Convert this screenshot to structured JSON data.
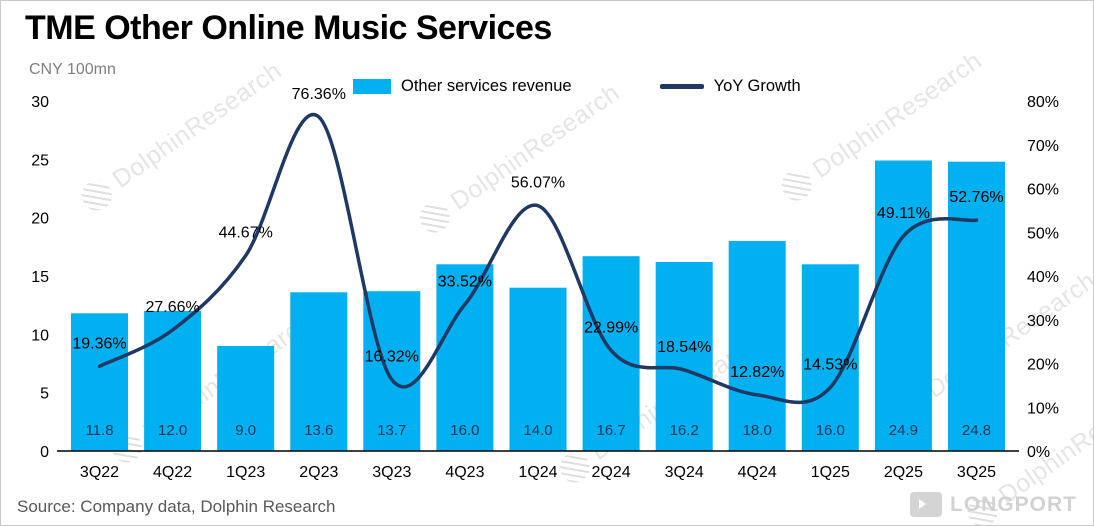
{
  "title": "TME Other Online Music Services",
  "unit_label": "CNY 100mn",
  "source": "Source: Company data, Dolphin Research",
  "watermark": {
    "text": "DolphinResearch"
  },
  "brand": {
    "text": "LONGPORT"
  },
  "legend": {
    "bar_label": "Other services revenue",
    "line_label": "YoY Growth"
  },
  "colors": {
    "bar": "#00B0F0",
    "line": "#1F3864",
    "bar_value_label": "#17375E",
    "axis_text": "#000000"
  },
  "chart_data": {
    "type": "bar+line",
    "title": "TME Other Online Music Services",
    "unit": "CNY 100mn",
    "categories": [
      "3Q22",
      "4Q22",
      "1Q23",
      "2Q23",
      "3Q23",
      "4Q23",
      "1Q24",
      "2Q24",
      "3Q24",
      "4Q24",
      "1Q25",
      "2Q25",
      "3Q25"
    ],
    "series": [
      {
        "name": "Other services revenue",
        "type": "bar",
        "axis": "left",
        "values": [
          11.8,
          12.0,
          9.0,
          13.6,
          13.7,
          16.0,
          14.0,
          16.7,
          16.2,
          18.0,
          16.0,
          24.9,
          24.8
        ],
        "labels": [
          "11.8",
          "12.0",
          "9.0",
          "13.6",
          "13.7",
          "16.0",
          "14.0",
          "16.7",
          "16.2",
          "18.0",
          "16.0",
          "24.9",
          "24.8"
        ]
      },
      {
        "name": "YoY Growth",
        "type": "line",
        "axis": "right",
        "values": [
          19.36,
          27.66,
          44.67,
          76.36,
          16.32,
          33.52,
          56.07,
          22.99,
          18.54,
          12.82,
          14.53,
          49.11,
          52.76
        ],
        "labels": [
          "19.36%",
          "27.66%",
          "44.67%",
          "76.36%",
          "16.32%",
          "33.52%",
          "56.07%",
          "22.99%",
          "18.54%",
          "12.82%",
          "14.53%",
          "49.11%",
          "52.76%"
        ]
      }
    ],
    "left_axis": {
      "min": 0,
      "max": 30,
      "step": 5,
      "ticks": [
        "0",
        "5",
        "10",
        "15",
        "20",
        "25",
        "30"
      ]
    },
    "right_axis": {
      "min": 0,
      "max": 80,
      "step": 10,
      "ticks": [
        "0%",
        "10%",
        "20%",
        "30%",
        "40%",
        "50%",
        "60%",
        "70%",
        "80%"
      ]
    },
    "legend_position": "top",
    "grid": false
  }
}
